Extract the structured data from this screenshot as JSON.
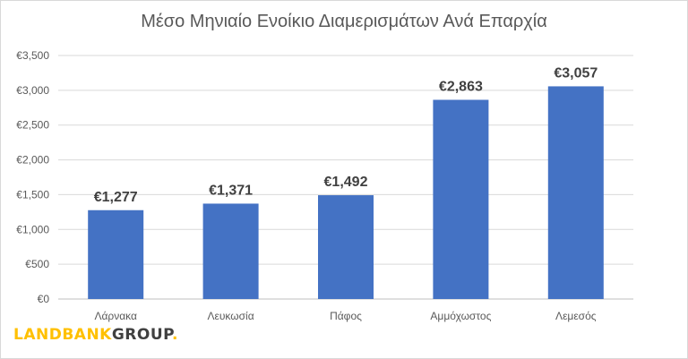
{
  "chart_data": {
    "type": "bar",
    "title": "Μέσο Μηνιαίο Ενοίκιο Διαμερισμάτων Ανά Επαρχία",
    "xlabel": "",
    "ylabel": "",
    "categories": [
      "Λάρνακα",
      "Λευκωσία",
      "Πάφος",
      "Αμμόχωστος",
      "Λεμεσός"
    ],
    "values": [
      1277,
      1371,
      1492,
      2863,
      3057
    ],
    "data_labels": [
      "€1,277",
      "€1,371",
      "€1,492",
      "€2,863",
      "€3,057"
    ],
    "ylim": [
      0,
      3500
    ],
    "yticks": [
      0,
      500,
      1000,
      1500,
      2000,
      2500,
      3000,
      3500
    ],
    "ytick_labels": [
      "€0",
      "€500",
      "€1,000",
      "€1,500",
      "€2,000",
      "€2,500",
      "€3,000",
      "€3,500"
    ],
    "grid": true,
    "legend": "none",
    "bar_color": "#4472c4",
    "grid_color": "#d9d9d9"
  },
  "logo": {
    "part1": "LANDBANK",
    "part2": "GROUP",
    "dot": "."
  }
}
